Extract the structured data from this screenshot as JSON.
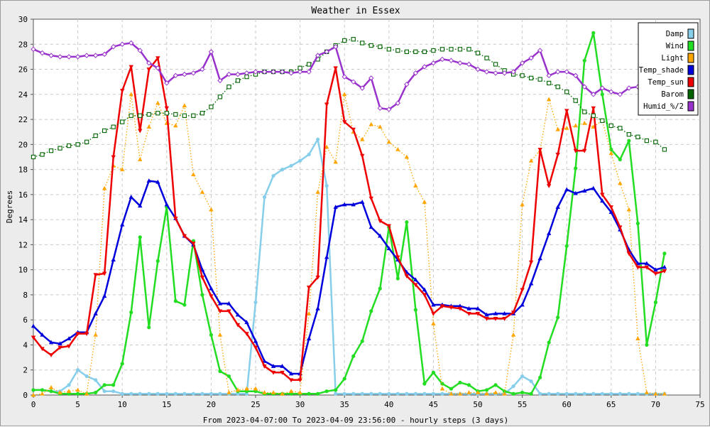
{
  "chart_data": {
    "type": "line",
    "title": "Weather in Essex",
    "xlabel": "From 2023-04-07:00 To 2023-04-09 23:56:00 - hourly steps (3 days)",
    "ylabel": "Degrees",
    "xlim": [
      0,
      75
    ],
    "ylim": [
      0,
      30
    ],
    "x_ticks": [
      0,
      5,
      10,
      15,
      20,
      25,
      30,
      35,
      40,
      45,
      50,
      55,
      60,
      65,
      70,
      75
    ],
    "y_ticks": [
      0,
      2,
      4,
      6,
      8,
      10,
      12,
      14,
      16,
      18,
      20,
      22,
      24,
      26,
      28,
      30
    ],
    "grid": true,
    "legend_position": "top-right",
    "series": [
      {
        "name": "Damp",
        "color": "#87ceeb",
        "marker": "dot",
        "style": "solid",
        "width": 2.5,
        "values": [
          0.4,
          0.4,
          0.3,
          0.3,
          0.8,
          2.0,
          1.5,
          1.2,
          0.3,
          0.3,
          0.1,
          0.1,
          0.1,
          0.1,
          0.1,
          0.1,
          0.1,
          0.1,
          0.1,
          0.1,
          0.1,
          0.1,
          0.1,
          0.1,
          0.1,
          7.4,
          15.8,
          17.5,
          18.0,
          18.3,
          18.7,
          19.2,
          20.4,
          16.7,
          0.1,
          0.1,
          0.1,
          0.1,
          0.1,
          0.1,
          0.1,
          0.1,
          0.1,
          0.1,
          0.1,
          0.1,
          0.1,
          0.1,
          0.1,
          0.1,
          0.1,
          0.1,
          0.1,
          0.1,
          0.7,
          1.5,
          1.1,
          0.1,
          0.1,
          0.1,
          0.1,
          0.1,
          0.1,
          0.1,
          0.1,
          0.1,
          0.1,
          0.1,
          0.1,
          0.1,
          0.1,
          0.1
        ]
      },
      {
        "name": "Wind",
        "color": "#22dd22",
        "marker": "dot",
        "style": "solid",
        "width": 2.5,
        "values": [
          0.4,
          0.4,
          0.3,
          0.1,
          0.1,
          0.1,
          0.1,
          0.2,
          0.8,
          0.8,
          2.5,
          6.6,
          12.6,
          5.4,
          10.7,
          15.0,
          7.5,
          7.2,
          12.3,
          8.0,
          4.8,
          1.9,
          1.5,
          0.3,
          0.3,
          0.3,
          0.1,
          0.1,
          0.1,
          0.1,
          0.1,
          0.1,
          0.1,
          0.3,
          0.4,
          1.3,
          3.1,
          4.3,
          6.7,
          8.5,
          13.4,
          9.3,
          13.8,
          6.8,
          0.9,
          1.8,
          0.9,
          0.5,
          1.0,
          0.8,
          0.3,
          0.4,
          0.8,
          0.3,
          0.1,
          0.2,
          0.1,
          1.4,
          4.2,
          6.2,
          11.9,
          18.1,
          26.7,
          28.9,
          24.0,
          19.6,
          18.8,
          20.3,
          13.7,
          4.0,
          7.4,
          11.3
        ]
      },
      {
        "name": "Light",
        "color": "#ffa500",
        "marker": "triangle-up",
        "style": "dotted",
        "width": 1.3,
        "values": [
          0.0,
          0.1,
          0.6,
          0.2,
          0.3,
          0.4,
          0.1,
          4.8,
          16.5,
          18.3,
          18.0,
          24.0,
          18.8,
          21.4,
          23.3,
          21.7,
          21.5,
          23.1,
          17.6,
          16.2,
          14.8,
          4.8,
          0.2,
          0.4,
          0.5,
          0.5,
          0.2,
          0.2,
          0.1,
          0.3,
          0.2,
          6.5,
          16.2,
          19.8,
          18.6,
          24.0,
          21.0,
          20.4,
          21.6,
          21.4,
          20.2,
          19.6,
          19.0,
          16.7,
          15.4,
          5.7,
          0.5,
          0.1,
          0.1,
          0.2,
          0.2,
          0.1,
          0.2,
          0.1,
          4.8,
          15.2,
          18.7,
          19.5,
          23.6,
          21.2,
          21.3,
          21.5,
          21.7,
          21.4,
          21.9,
          19.3,
          16.9,
          14.8,
          4.5,
          0.2,
          0.1,
          0.1
        ]
      },
      {
        "name": "Temp_shade",
        "color": "#0000dd",
        "marker": "triangle-up",
        "style": "solid",
        "width": 2.5,
        "values": [
          5.5,
          4.8,
          4.2,
          4.1,
          4.5,
          5.0,
          5.0,
          6.5,
          7.9,
          10.8,
          13.6,
          15.8,
          15.1,
          17.1,
          17.0,
          15.2,
          14.1,
          12.7,
          12.0,
          10.0,
          8.5,
          7.3,
          7.3,
          6.4,
          5.8,
          4.3,
          2.7,
          2.3,
          2.3,
          1.7,
          1.7,
          4.5,
          6.9,
          11.0,
          15.0,
          15.2,
          15.2,
          15.4,
          13.4,
          12.7,
          11.7,
          10.8,
          9.8,
          9.2,
          8.4,
          7.2,
          7.2,
          7.1,
          7.1,
          6.9,
          6.9,
          6.4,
          6.5,
          6.5,
          6.5,
          7.2,
          8.9,
          10.9,
          12.9,
          15.0,
          16.4,
          16.1,
          16.3,
          16.5,
          15.5,
          14.6,
          13.2,
          11.6,
          10.5,
          10.5,
          10.0,
          10.2
        ]
      },
      {
        "name": "Temp_sun",
        "color": "#ee0000",
        "marker": "triangle-down",
        "style": "solid",
        "width": 2.5,
        "values": [
          4.6,
          3.7,
          3.2,
          3.8,
          3.9,
          4.9,
          4.9,
          9.6,
          9.7,
          19.0,
          24.3,
          26.2,
          21.1,
          26.0,
          26.9,
          22.9,
          14.1,
          12.7,
          12.1,
          9.4,
          7.9,
          6.7,
          6.7,
          5.6,
          4.9,
          3.8,
          2.3,
          1.8,
          1.8,
          1.2,
          1.2,
          8.6,
          9.4,
          23.2,
          26.1,
          21.8,
          21.2,
          19.1,
          15.7,
          13.9,
          13.5,
          11.0,
          9.5,
          8.8,
          8.0,
          6.5,
          7.1,
          7.0,
          6.9,
          6.5,
          6.5,
          6.1,
          6.1,
          6.1,
          6.6,
          8.4,
          10.6,
          19.6,
          16.7,
          19.2,
          22.7,
          19.5,
          19.5,
          22.9,
          16.0,
          15.0,
          13.4,
          11.3,
          10.2,
          10.2,
          9.7,
          9.9
        ]
      },
      {
        "name": "Barom",
        "color": "#006400",
        "marker": "square-open",
        "style": "dotted",
        "width": 1.3,
        "values": [
          19.0,
          19.2,
          19.5,
          19.7,
          19.9,
          20.0,
          20.2,
          20.7,
          21.1,
          21.4,
          21.8,
          22.3,
          22.3,
          22.4,
          22.5,
          22.5,
          22.4,
          22.3,
          22.3,
          22.5,
          23.0,
          23.8,
          24.6,
          25.1,
          25.4,
          25.6,
          25.8,
          25.8,
          25.8,
          25.8,
          26.1,
          26.4,
          26.8,
          27.4,
          27.9,
          28.3,
          28.4,
          28.1,
          27.9,
          27.8,
          27.6,
          27.5,
          27.4,
          27.4,
          27.4,
          27.5,
          27.6,
          27.6,
          27.6,
          27.6,
          27.3,
          26.9,
          26.4,
          25.9,
          25.6,
          25.5,
          25.3,
          25.2,
          24.9,
          24.6,
          24.2,
          23.5,
          22.6,
          22.3,
          21.9,
          21.5,
          21.3,
          20.8,
          20.6,
          20.3,
          20.2,
          19.6
        ]
      },
      {
        "name": "Humid_%/2",
        "color": "#9932cc",
        "marker": "diamond-open",
        "style": "solid",
        "width": 2.5,
        "values": [
          27.6,
          27.3,
          27.1,
          27.0,
          27.0,
          27.0,
          27.1,
          27.1,
          27.2,
          27.8,
          28.0,
          28.1,
          27.5,
          26.5,
          26.1,
          24.9,
          25.5,
          25.6,
          25.7,
          26.0,
          27.4,
          25.1,
          25.6,
          25.6,
          25.7,
          25.8,
          25.8,
          25.8,
          25.8,
          25.7,
          25.8,
          25.8,
          27.1,
          27.4,
          27.8,
          25.4,
          25.0,
          24.5,
          25.3,
          22.9,
          22.8,
          23.3,
          24.8,
          25.7,
          26.2,
          26.5,
          26.8,
          26.7,
          26.5,
          26.4,
          26.0,
          25.8,
          25.7,
          25.7,
          25.8,
          26.5,
          26.9,
          27.5,
          25.5,
          25.8,
          25.8,
          25.5,
          24.6,
          24.0,
          24.5,
          24.2,
          24.0,
          24.5,
          24.6,
          null,
          null,
          null
        ]
      }
    ]
  }
}
